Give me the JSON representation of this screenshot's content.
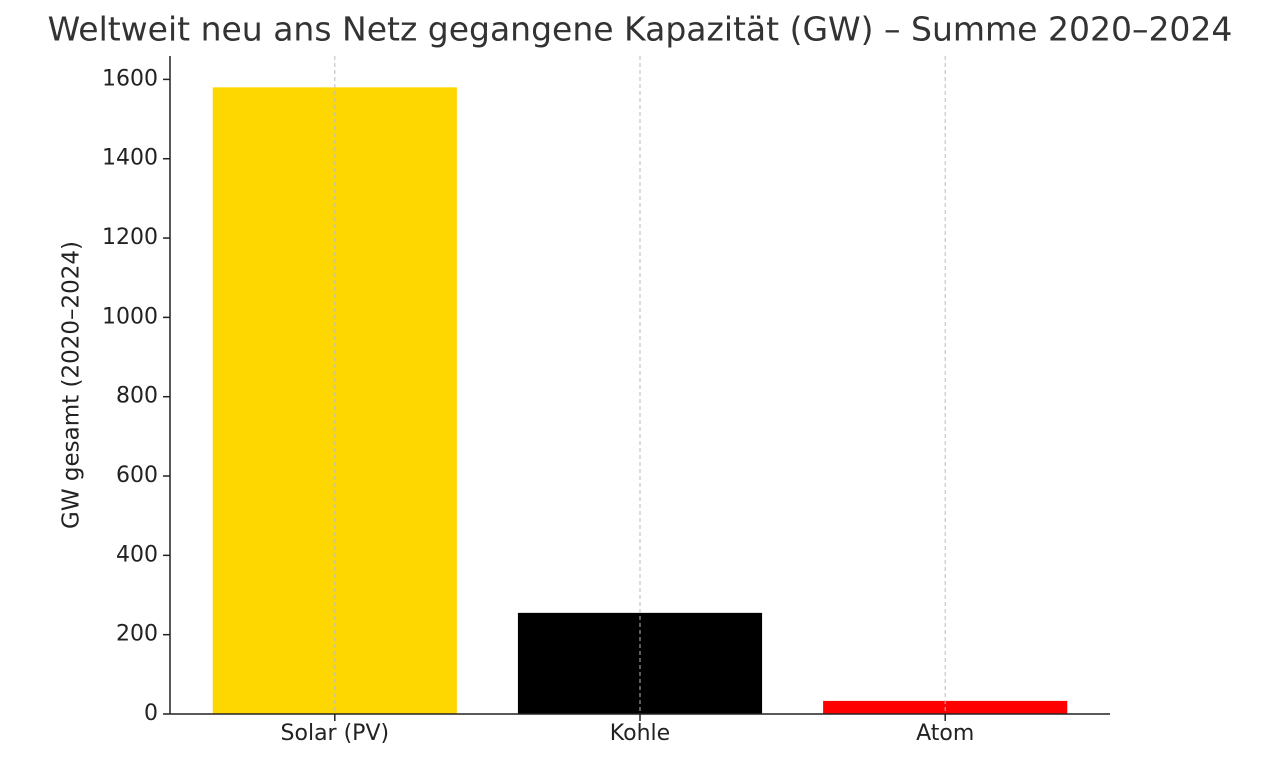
{
  "chart_data": {
    "type": "bar",
    "title": "Weltweit neu ans Netz gegangene Kapazität (GW) – Summe 2020–2024",
    "y_label": "GW gesamt (2020–2024)",
    "categories": [
      "Solar (PV)",
      "Kohle",
      "Atom"
    ],
    "values": [
      1580,
      255,
      33
    ],
    "colors": [
      "#FFD700",
      "#000000",
      "#FF0000"
    ],
    "ylim": [
      0,
      1659
    ],
    "yticks": [
      0,
      200,
      400,
      600,
      800,
      1000,
      1200,
      1400,
      1600
    ],
    "grid": "x"
  }
}
